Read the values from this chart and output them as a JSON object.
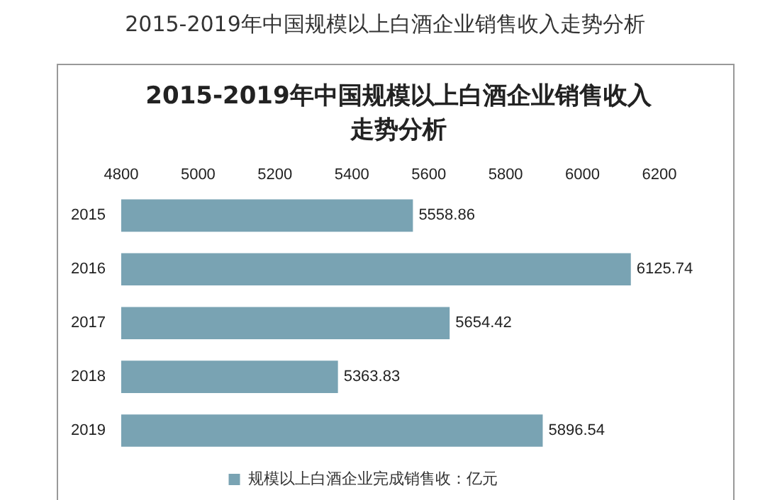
{
  "chart_data": {
    "type": "bar",
    "orientation": "horizontal",
    "title": "2015-2019年中国规模以上白酒企业销售收入走势分析",
    "subtitle": "2015-2019年中国规模以上白酒企业销售收入走势分析",
    "categories": [
      "2015",
      "2016",
      "2017",
      "2018",
      "2019"
    ],
    "series": [
      {
        "name": "规模以上白酒企业完成销售收：亿元",
        "color": "#79a3b3",
        "values": [
          5558.86,
          6125.74,
          5654.42,
          5363.83,
          5896.54
        ]
      }
    ],
    "xlim": [
      4800,
      6200
    ],
    "xticks": [
      4800,
      5000,
      5200,
      5400,
      5600,
      5800,
      6000,
      6200
    ],
    "grid": false,
    "legend": "bottom",
    "data_labels": true
  }
}
